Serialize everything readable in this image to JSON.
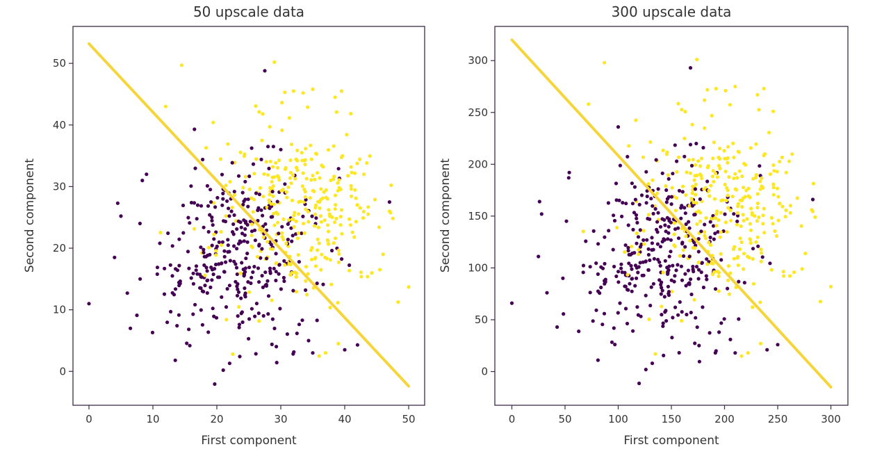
{
  "chart_data": [
    {
      "type": "scatter",
      "title": "50 upscale data",
      "xlabel": "First component",
      "ylabel": "Second component",
      "xlim": [
        -2.5,
        52.5
      ],
      "ylim": [
        -5.5,
        56
      ],
      "xticks": [
        0,
        10,
        20,
        30,
        40,
        50
      ],
      "yticks": [
        0,
        10,
        20,
        30,
        40,
        50
      ],
      "grid": false,
      "point_colors": {
        "class_0": "#440154",
        "class_1": "#fde725"
      },
      "decision_line": {
        "x": [
          0,
          50
        ],
        "y": [
          53.2,
          -2.4
        ],
        "color": "#f5d53a"
      },
      "series": [
        {
          "name": "class_0",
          "cloud": {
            "center": [
              24,
              19
            ],
            "spread": [
              6.5,
              7
            ],
            "count": 340,
            "seed": 11
          },
          "points": [
            [
              0,
              11
            ],
            [
              4,
              18.5
            ],
            [
              4.5,
              27.3
            ],
            [
              5,
              25.2
            ],
            [
              6,
              12.7
            ],
            [
              13.5,
              1.8
            ],
            [
              21,
              0.2
            ],
            [
              22,
              1.3
            ],
            [
              27.5,
              48.8
            ],
            [
              40,
              3.5
            ],
            [
              42,
              4.3
            ],
            [
              47,
              27.5
            ],
            [
              16.5,
              39.3
            ],
            [
              30,
              36
            ],
            [
              28,
              36.5
            ],
            [
              9,
              32
            ],
            [
              8,
              15
            ],
            [
              35,
              3
            ]
          ]
        },
        {
          "name": "class_1",
          "cloud": {
            "center": [
              33,
              26
            ],
            "spread": [
              6,
              7
            ],
            "count": 300,
            "seed": 23
          },
          "points": [
            [
              14.5,
              49.7
            ],
            [
              29,
              50.2
            ],
            [
              12,
              43
            ],
            [
              50,
              13.7
            ],
            [
              46,
              19
            ],
            [
              45.5,
              16.5
            ],
            [
              47,
              26
            ],
            [
              43,
              32
            ],
            [
              39.5,
              45.5
            ],
            [
              35,
              45.8
            ],
            [
              33.5,
              45.2
            ],
            [
              37,
              3
            ],
            [
              39,
              4.5
            ],
            [
              36,
              2.5
            ],
            [
              22.5,
              2.8
            ],
            [
              32,
              45.5
            ],
            [
              38.5,
              44.5
            ]
          ]
        }
      ]
    },
    {
      "type": "scatter",
      "title": "300 upscale data",
      "xlabel": "First component",
      "ylabel": "Second component",
      "xlim": [
        -16,
        316
      ],
      "ylim": [
        -32.5,
        333
      ],
      "xticks": [
        0,
        50,
        100,
        150,
        200,
        250,
        300
      ],
      "yticks": [
        0,
        50,
        100,
        150,
        200,
        250,
        300
      ],
      "grid": false,
      "point_colors": {
        "class_0": "#440154",
        "class_1": "#fde725"
      },
      "decision_line": {
        "x": [
          0,
          300
        ],
        "y": [
          320,
          -15
        ],
        "color": "#f5d53a"
      },
      "series": [
        {
          "name": "class_0",
          "cloud": {
            "center": [
              145,
              115
            ],
            "spread": [
              38,
              42
            ],
            "count": 340,
            "seed": 11
          },
          "points": [
            [
              0,
              66
            ],
            [
              25,
              111
            ],
            [
              26,
              164
            ],
            [
              28,
              152
            ],
            [
              33,
              76
            ],
            [
              81,
              11
            ],
            [
              126,
              2
            ],
            [
              132,
              8
            ],
            [
              168,
              293
            ],
            [
              240,
              21
            ],
            [
              250,
              26
            ],
            [
              283,
              166
            ],
            [
              100,
              236
            ],
            [
              180,
              216
            ],
            [
              168,
              219
            ],
            [
              54,
              192
            ],
            [
              48,
              90
            ],
            [
              210,
              18
            ]
          ]
        },
        {
          "name": "class_1",
          "cloud": {
            "center": [
              198,
              156
            ],
            "spread": [
              36,
              42
            ],
            "count": 300,
            "seed": 23
          },
          "points": [
            [
              87,
              298
            ],
            [
              174,
              301
            ],
            [
              72,
              258
            ],
            [
              300,
              82
            ],
            [
              276,
              114
            ],
            [
              273,
              99
            ],
            [
              282,
              156
            ],
            [
              258,
              192
            ],
            [
              237,
              273
            ],
            [
              210,
              275
            ],
            [
              201,
              271
            ],
            [
              222,
              18
            ],
            [
              234,
              27
            ],
            [
              216,
              15
            ],
            [
              135,
              17
            ],
            [
              192,
              273
            ],
            [
              231,
              267
            ]
          ]
        }
      ]
    }
  ]
}
